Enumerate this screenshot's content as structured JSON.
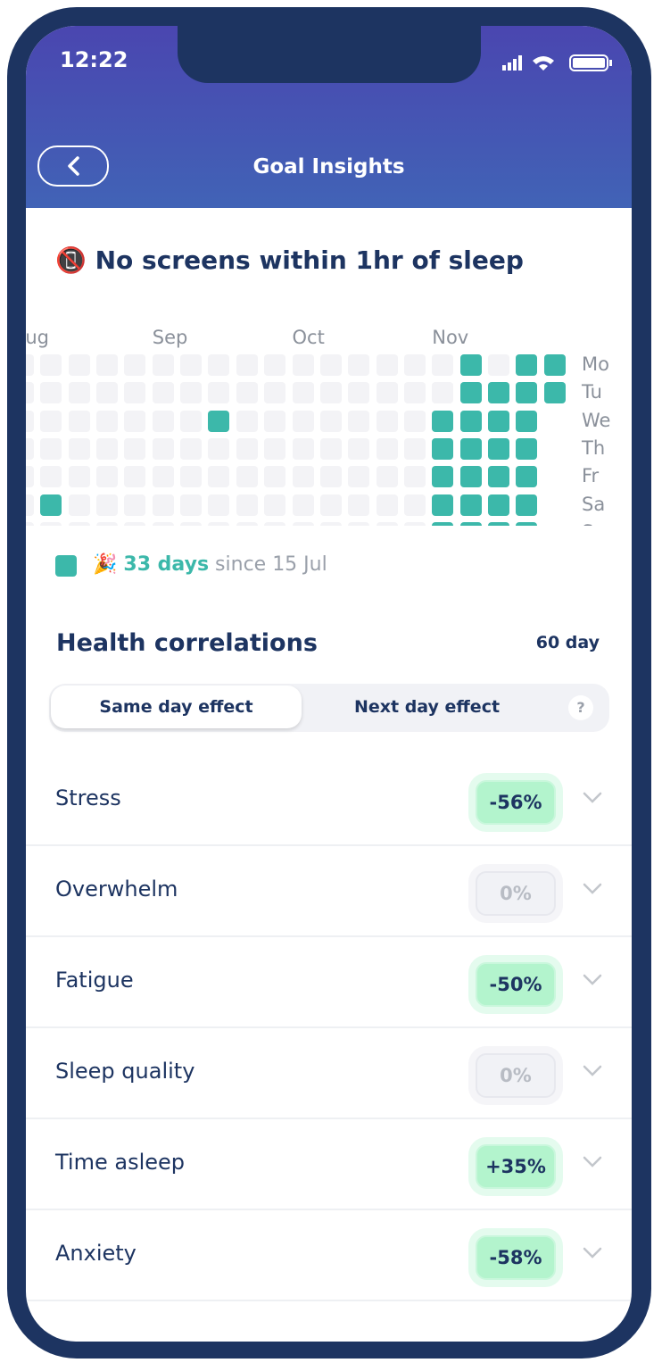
{
  "status_bar": {
    "time": "12:22"
  },
  "header": {
    "title": "Goal Insights"
  },
  "goal": {
    "icon": "📵",
    "title": "No screens within 1hr of sleep"
  },
  "calendar": {
    "months": [
      "Aug",
      "Sep",
      "Oct",
      "Nov"
    ],
    "days": [
      "Mo",
      "Tu",
      "We",
      "Th",
      "Fr",
      "Sa",
      "Su"
    ],
    "weeks": [
      [
        0,
        0,
        0,
        0,
        0,
        0,
        0
      ],
      [
        0,
        0,
        0,
        0,
        0,
        1,
        0
      ],
      [
        0,
        0,
        0,
        0,
        0,
        0,
        0
      ],
      [
        0,
        0,
        0,
        0,
        0,
        0,
        0
      ],
      [
        0,
        0,
        0,
        0,
        0,
        0,
        0
      ],
      [
        0,
        0,
        0,
        0,
        0,
        0,
        0
      ],
      [
        0,
        0,
        0,
        0,
        0,
        0,
        0
      ],
      [
        0,
        0,
        1,
        0,
        0,
        0,
        0
      ],
      [
        0,
        0,
        0,
        0,
        0,
        0,
        0
      ],
      [
        0,
        0,
        0,
        0,
        0,
        0,
        0
      ],
      [
        0,
        0,
        0,
        0,
        0,
        0,
        0
      ],
      [
        0,
        0,
        0,
        0,
        0,
        0,
        0
      ],
      [
        0,
        0,
        0,
        0,
        0,
        0,
        0
      ],
      [
        0,
        0,
        0,
        0,
        0,
        0,
        0
      ],
      [
        0,
        0,
        0,
        0,
        0,
        0,
        0
      ],
      [
        0,
        0,
        1,
        1,
        1,
        1,
        1
      ],
      [
        1,
        1,
        1,
        1,
        1,
        1,
        1
      ],
      [
        0,
        1,
        1,
        1,
        1,
        1,
        1
      ],
      [
        1,
        1,
        1,
        1,
        1,
        1,
        1
      ],
      [
        1,
        1,
        null,
        null,
        null,
        null,
        null
      ]
    ],
    "legend": {
      "icon": "🎉",
      "count": "33 days",
      "since": "since 15 Jul"
    }
  },
  "correlations": {
    "title": "Health correlations",
    "period": "60 day",
    "tabs": [
      "Same day effect",
      "Next day effect"
    ],
    "help": "?",
    "rows": [
      {
        "label": "Stress",
        "value": -56,
        "value_label": "-56%"
      },
      {
        "label": "Overwhelm",
        "value": 0,
        "value_label": "0%"
      },
      {
        "label": "Fatigue",
        "value": -50,
        "value_label": "-50%"
      },
      {
        "label": "Sleep quality",
        "value": 0,
        "value_label": "0%"
      },
      {
        "label": "Time asleep",
        "value": 35,
        "value_label": "+35%"
      },
      {
        "label": "Anxiety",
        "value": -58,
        "value_label": "-58%"
      }
    ]
  }
}
